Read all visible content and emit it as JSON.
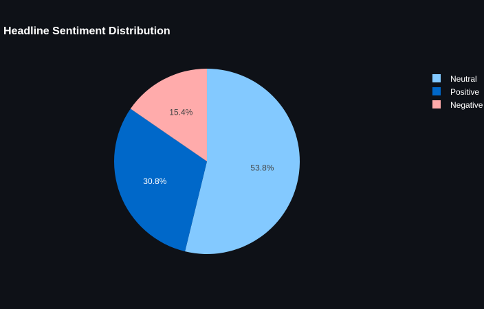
{
  "chart_data": {
    "type": "pie",
    "title": "Headline Sentiment Distribution",
    "slices": [
      {
        "label": "Neutral",
        "value": 53.8,
        "display": "53.8%",
        "color": "#83c9ff",
        "text_color": "#444444"
      },
      {
        "label": "Positive",
        "value": 30.8,
        "display": "30.8%",
        "color": "#0068c9",
        "text_color": "#ffffff"
      },
      {
        "label": "Negative",
        "value": 15.4,
        "display": "15.4%",
        "color": "#ffabab",
        "text_color": "#444444"
      }
    ],
    "start_angle_deg": 0,
    "direction": "clockwise",
    "legend": {
      "position": "top-right",
      "entries": [
        "Neutral",
        "Positive",
        "Negative"
      ]
    },
    "background_color": "#0e1117"
  }
}
